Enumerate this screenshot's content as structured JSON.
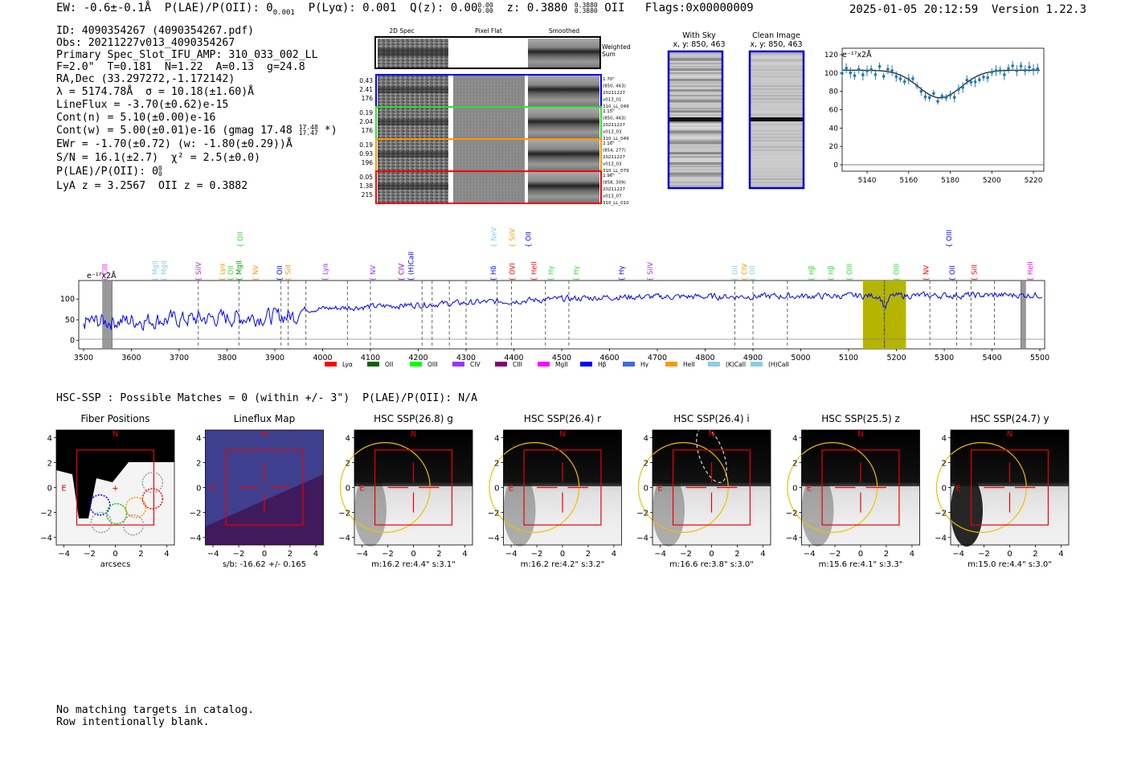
{
  "header": {
    "ew": "EW: -0.6±-0.1Å",
    "plae": "P(LAE)/P(OII): 0",
    "plae_sub": "0.001",
    "plya": "P(Lyα): 0.001",
    "qz": "Q(z): 0.00",
    "qz_sup": "0.00",
    "qz_sub": "0.00",
    "z": "z: 0.3880",
    "z_sup": "0.3880",
    "z_sub": "0.3880",
    "z_line": "OII",
    "flags": "Flags:0x00000009",
    "datetime": "2025-01-05 20:12:59",
    "version": "Version 1.22.3"
  },
  "info": {
    "id": "ID: 4090354267 (4090354267.pdf)",
    "obs": "Obs: 20211227v013_4090354267",
    "primary": "Primary Spec_Slot_IFU_AMP: 310_033_002_LL",
    "fline": "F=2.0\"  T=0.181  N=1.22  A=0.13  g=24.8",
    "radec": "RA,Dec (33.297272,-1.172142)",
    "lambda": "λ = 5174.78Å  σ = 10.18(±1.60)Å",
    "lineflux": "LineFlux = -3.70(±0.62)e-15",
    "contn": "Cont(n) = 5.10(±0.00)e-16",
    "contw": "Cont(w) = 5.00(±0.01)e-16 (gmag 17.48",
    "contw_sup": "17.48",
    "contw_sub": "17.47",
    "contw_end": "*)",
    "ewr": "EWr = -1.70(±0.72) (w: -1.80(±0.29))Å",
    "sn": "S/N = 16.1(±2.7)  χ² = 2.5(±0.0)",
    "plae2": "P(LAE)/P(OII): 0",
    "plae2_sup": "0",
    "plae2_sub": "0",
    "lyaz": "LyA z = 3.2567  OII z = 0.3882"
  },
  "cutouts": {
    "col_headers": [
      "2D Spec",
      "Pixel Flat",
      "Smoothed"
    ],
    "weighted_label": "Weighted Sum",
    "rows": [
      {
        "vals": [
          "0.43",
          "2.41",
          "176"
        ],
        "color": "#0000ff",
        "meta": [
          "1.70\"",
          "(850, 463)",
          "20211227",
          "v013_01",
          "310_LL_049"
        ]
      },
      {
        "vals": [
          "0.19",
          "2.04",
          "176"
        ],
        "color": "#33dd33",
        "meta": [
          "2.15\"",
          "(850, 463)",
          "20211227",
          "v013_03",
          "310_LL_049"
        ]
      },
      {
        "vals": [
          "0.19",
          "0.93",
          "196"
        ],
        "color": "#ff9900",
        "meta": [
          "2.16\"",
          "(854, 277)",
          "20211227",
          "v013_03",
          "310_LL_079"
        ]
      },
      {
        "vals": [
          "0.05",
          "1.38",
          "215"
        ],
        "color": "#ff0000",
        "meta": [
          "2.96\"",
          "(858, 309)",
          "20211227",
          "v013_07",
          "310_LL_010"
        ]
      }
    ],
    "with_sky": "With Sky",
    "with_sky_xy": "x, y: 850, 463",
    "clean_image": "Clean Image",
    "clean_image_xy": "x, y: 850, 463"
  },
  "zoom_plot": {
    "units": "e⁻¹⁷x2Å",
    "x_ticks": [
      "5140",
      "5160",
      "5180",
      "5200",
      "5220"
    ],
    "y_ticks": [
      "0",
      "20",
      "40",
      "60",
      "80",
      "100",
      "120"
    ],
    "color": "#1f77b4"
  },
  "spectrum": {
    "units": "e⁻¹⁷x2Å",
    "x_ticks": [
      "3500",
      "3600",
      "3700",
      "3800",
      "3900",
      "4000",
      "4100",
      "4200",
      "4300",
      "4400",
      "4500",
      "4600",
      "4700",
      "4800",
      "4900",
      "5000",
      "5100",
      "5200",
      "5300",
      "5400",
      "5500"
    ],
    "y_ticks": [
      "0",
      "50",
      "100"
    ],
    "line_labels": [
      {
        "w": 3545,
        "t": "CIII",
        "c": "#ff00ff",
        "lvl": 0
      },
      {
        "w": 3650,
        "t": "MgII",
        "c": "#87ceeb",
        "lvl": 0
      },
      {
        "w": 3668,
        "t": "MgII",
        "c": "#87ceeb",
        "lvl": 0
      },
      {
        "w": 3740,
        "t": "SiIV",
        "c": "#9933ff",
        "lvl": 0
      },
      {
        "w": 3790,
        "t": "Lyα",
        "c": "#ff9900",
        "lvl": 0
      },
      {
        "w": 3808,
        "t": "OII",
        "c": "#33dd33",
        "lvl": 0
      },
      {
        "w": 3825,
        "t": "MgII",
        "c": "#009900",
        "lvl": 0
      },
      {
        "w": 3828,
        "t": "OII",
        "c": "#33dd33",
        "lvl": 1
      },
      {
        "w": 3860,
        "t": "NV",
        "c": "#ff9900",
        "lvl": 0
      },
      {
        "w": 3910,
        "t": "OII",
        "c": "#0000ff",
        "lvl": 0
      },
      {
        "w": 3928,
        "t": "SiII",
        "c": "#ff9900",
        "lvl": 0
      },
      {
        "w": 4005,
        "t": "Lyα",
        "c": "#9933ff",
        "lvl": 0
      },
      {
        "w": 4105,
        "t": "NV",
        "c": "#9933ff",
        "lvl": 0
      },
      {
        "w": 4165,
        "t": "CIV",
        "c": "#990099",
        "lvl": 0
      },
      {
        "w": 4185,
        "t": "(H)CaII",
        "c": "#0000ff",
        "lvl": 0
      },
      {
        "w": 4357,
        "t": "Hδ",
        "c": "#0000ff",
        "lvl": 0
      },
      {
        "w": 4358,
        "t": "NeV",
        "c": "#87ceeb",
        "lvl": 1
      },
      {
        "w": 4397,
        "t": "OVI",
        "c": "#ff0000",
        "lvl": 0
      },
      {
        "w": 4397,
        "t": "SiIV",
        "c": "#ff9900",
        "lvl": 1
      },
      {
        "w": 4430,
        "t": "OII",
        "c": "#0000ff",
        "lvl": 1
      },
      {
        "w": 4442,
        "t": "HeII",
        "c": "#ff0000",
        "lvl": 0
      },
      {
        "w": 4477,
        "t": "Hγ",
        "c": "#33dd33",
        "lvl": 0
      },
      {
        "w": 4530,
        "t": "Hγ",
        "c": "#33dd33",
        "lvl": 0
      },
      {
        "w": 4625,
        "t": "Hγ",
        "c": "#0000ff",
        "lvl": 0
      },
      {
        "w": 4685,
        "t": "SiIV",
        "c": "#9933ff",
        "lvl": 0
      },
      {
        "w": 4862,
        "t": "OII",
        "c": "#87ceeb",
        "lvl": 0
      },
      {
        "w": 4882,
        "t": "CIV",
        "c": "#ff9900",
        "lvl": 0
      },
      {
        "w": 4898,
        "t": "OII",
        "c": "#87ceeb",
        "lvl": 0
      },
      {
        "w": 5023,
        "t": "Hβ",
        "c": "#33dd33",
        "lvl": 0
      },
      {
        "w": 5063,
        "t": "Hβ",
        "c": "#33dd33",
        "lvl": 0
      },
      {
        "w": 5102,
        "t": "OIII",
        "c": "#33dd33",
        "lvl": 0
      },
      {
        "w": 5200,
        "t": "OIII",
        "c": "#33dd33",
        "lvl": 0
      },
      {
        "w": 5262,
        "t": "NV",
        "c": "#ff0000",
        "lvl": 0
      },
      {
        "w": 5317,
        "t": "OII",
        "c": "#0000ff",
        "lvl": 0
      },
      {
        "w": 5310,
        "t": "OIII",
        "c": "#0000ff",
        "lvl": 1
      },
      {
        "w": 5363,
        "t": "SiII",
        "c": "#ff0000",
        "lvl": 0
      },
      {
        "w": 5480,
        "t": "HeII",
        "c": "#ff00ff",
        "lvl": 0
      }
    ],
    "dashed_lines": [
      3740,
      3825,
      3913,
      3928,
      3965,
      4052,
      4100,
      4208,
      4229,
      4265,
      4300,
      4365,
      4395,
      4466,
      4515,
      4862,
      4900,
      4972,
      5175,
      5270,
      5326,
      5356,
      5405
    ],
    "highlight_range": [
      5130,
      5220
    ],
    "grey_bars": [
      [
        3540,
        3560
      ],
      [
        5460,
        5470
      ]
    ],
    "legend": [
      {
        "t": "Lyα",
        "c": "#ff0000"
      },
      {
        "t": "OII",
        "c": "#006600"
      },
      {
        "t": "OIII",
        "c": "#00ff00"
      },
      {
        "t": "CIV",
        "c": "#9933ff"
      },
      {
        "t": "CIII",
        "c": "#800080"
      },
      {
        "t": "MgII",
        "c": "#ff00ff"
      },
      {
        "t": "Hβ",
        "c": "#0000ff"
      },
      {
        "t": "Hγ",
        "c": "#4169e1"
      },
      {
        "t": "HeII",
        "c": "#ff9900"
      },
      {
        "t": "(K)CaII",
        "c": "#87ceeb"
      },
      {
        "t": "(H)CaII",
        "c": "#87ceeb"
      }
    ]
  },
  "hsc": {
    "summary": "HSC-SSP : Possible Matches = 0 (within +/- 3\")  P(LAE)/P(OII): N/A",
    "panels": [
      {
        "title": "Fiber Positions",
        "xlabel": "arcsecs",
        "type": "fiber"
      },
      {
        "title": "Lineflux Map",
        "xlabel": "s/b: -16.62 +/- 0.165",
        "type": "lineflux"
      },
      {
        "title": "HSC SSP(26.8) g",
        "xlabel": "m:16.2  re:4.4\"  s:3.1\"",
        "type": "img"
      },
      {
        "title": "HSC SSP(26.4) r",
        "xlabel": "m:16.2  re:4.2\"  s:3.2\"",
        "type": "img"
      },
      {
        "title": "HSC SSP(26.4) i",
        "xlabel": "m:16.6  re:3.8\"  s:3.0\"",
        "type": "img"
      },
      {
        "title": "HSC SSP(25.5) z",
        "xlabel": "m:15.6  re:4.1\"  s:3.3\"",
        "type": "img"
      },
      {
        "title": "HSC SSP(24.7) y",
        "xlabel": "m:15.0  re:4.4\"  s:3.0\"",
        "type": "img"
      }
    ],
    "ticks": [
      "−4",
      "−2",
      "0",
      "2",
      "4"
    ],
    "n_label": "N",
    "e_label": "E"
  },
  "footer": {
    "line1": "No matching targets in catalog.",
    "line2": "Row intentionally blank."
  }
}
